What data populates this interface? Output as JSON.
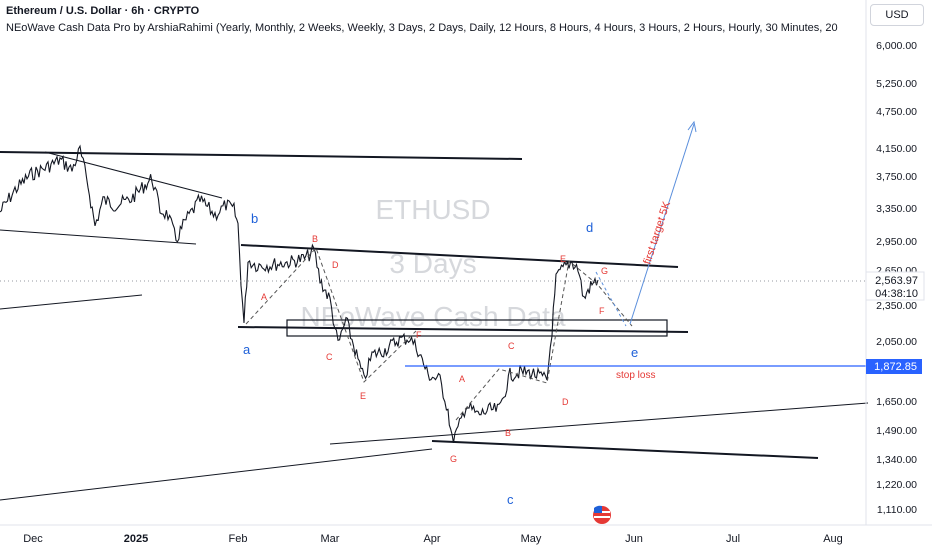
{
  "header": {
    "symbol_line": "Ethereum / U.S. Dollar · 6h · CRYPTO",
    "indicator_line": "NEoWave Cash Data Pro by ArshiaRahimi (Yearly, Monthly, 2 Weeks, Weekly, 3 Days, 2 Days, Daily, 12 Hours, 8 Hours, 4 Hours, 3 Hours, 2 Hours, Hourly, 30 Minutes, 20"
  },
  "currency_button": "USD",
  "watermark": {
    "line1": "ETHUSD",
    "line2": "3 Days",
    "line3": "NEoWave Cash Data"
  },
  "colors": {
    "price": "#131722",
    "wave_red": "#e53935",
    "wave_blue": "#1e60d8",
    "stop_loss": "#2962ff",
    "target": "#5b8fdc",
    "axis_text": "#131722"
  },
  "chart_data": {
    "type": "line",
    "title": "",
    "xlabel": "",
    "ylabel": "",
    "ylim": [
      1060,
      6400
    ],
    "y_scale": "log",
    "grid": false,
    "x_ticks": [
      "Dec",
      "2025",
      "Feb",
      "Mar",
      "Apr",
      "May",
      "Jun",
      "Jul",
      "Aug"
    ],
    "y_ticks": [
      "6,000.00",
      "5,250.00",
      "4,750.00",
      "4,150.00",
      "3,750.00",
      "3,350.00",
      "2,950.00",
      "2,650.00",
      "2,350.00",
      "2,050.00",
      "1,650.00",
      "1,490.00",
      "1,340.00",
      "1,220.00",
      "1,110.00"
    ],
    "price_labels": [
      {
        "value": "2,563.97",
        "countdown": "04:38:10"
      },
      {
        "value": "1,872.85"
      }
    ],
    "series": [
      {
        "values_by_month": [
          {
            "x": "Dec",
            "y": 3650
          },
          {
            "x": "2025",
            "y": 3550
          },
          {
            "x": "Feb",
            "y": 2800
          },
          {
            "x": "Mar",
            "y": 2150
          },
          {
            "x": "Apr",
            "y": 1600
          },
          {
            "x": "May",
            "y": 1830
          },
          {
            "x": "end",
            "y": 2564
          }
        ]
      }
    ],
    "wave_labels": {
      "blue": [
        "b",
        "a",
        "d",
        "e",
        "c"
      ],
      "red": [
        "B",
        "D",
        "A",
        "C",
        "E",
        "F",
        "A",
        "C",
        "B",
        "D",
        "E",
        "G",
        "F",
        "G"
      ]
    },
    "annotations": [
      "first target 5K",
      "stop loss"
    ]
  }
}
